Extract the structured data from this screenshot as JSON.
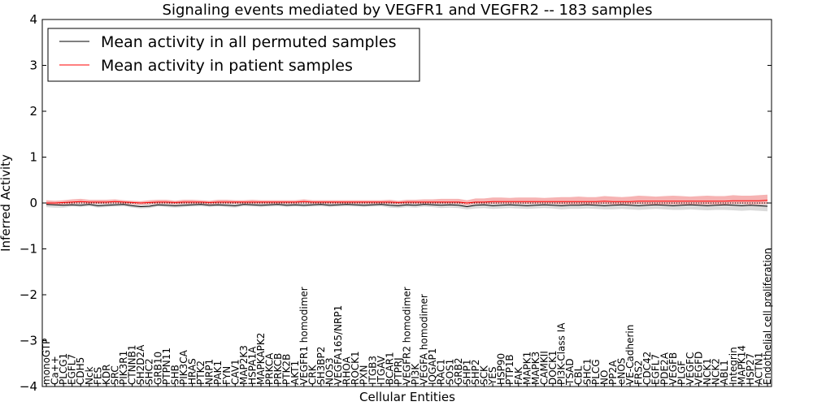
{
  "chart_data": {
    "type": "line",
    "title": "Signaling events mediated by VEGFR1 and VEGFR2 -- 183 samples",
    "xlabel": "Cellular Entities",
    "ylabel": "Inferred Activity",
    "ylim": [
      -4,
      4
    ],
    "yticks": [
      "−4",
      "−3",
      "−2",
      "−1",
      "0",
      "1",
      "2",
      "3",
      "4"
    ],
    "ytick_values": [
      -4,
      -3,
      -2,
      -1,
      0,
      1,
      2,
      3,
      4
    ],
    "legend": {
      "placement": "top-left",
      "entries": [
        {
          "label": "Mean activity in all permuted samples",
          "color": "#000000"
        },
        {
          "label": "Mean activity in patient samples",
          "color": "#ff0000"
        }
      ]
    },
    "categories": [
      "monoGTP",
      "Ca++",
      "PLCG1",
      "EGFL7",
      "CDH5",
      "Nck",
      "FES",
      "KDR",
      "SRC",
      "PIK3R1",
      "CTNNB1",
      "SH2D2A",
      "SHC2",
      "GRB10",
      "PTPN11",
      "SHB",
      "PIK3CA",
      "HRAS",
      "PTK2",
      "NRP1",
      "PAK1",
      "FYN",
      "CAV1",
      "MAP2K3",
      "HSPA1A",
      "MAPKAPK2",
      "PRKCA",
      "PRKCB",
      "PTK2B",
      "AKT1",
      "VEGFR1 homodimer",
      "CRK",
      "SH3BP2",
      "NOS3",
      "VEGFA165/NRP1",
      "RHOA",
      "ROCK1",
      "PXN",
      "ITGB3",
      "ITGAV",
      "BCAR1",
      "PTPRJ",
      "VEGFR2 homodimer",
      "PI3K",
      "VEGFA homodimer",
      "IQGAP1",
      "RAC1",
      "SOS1",
      "GRB2",
      "SHP1",
      "SHP2",
      "SCK",
      "YES",
      "HSP90",
      "PTP1B",
      "FAK",
      "MAPK1",
      "MAPK3",
      "CAMKII",
      "DOCK1",
      "PI3K-Class IA",
      "TSAD",
      "CBL",
      "SHC1",
      "PLCG",
      "NO",
      "PP2A",
      "eNOS",
      "VE-Cadherin",
      "FRS2",
      "CDC42",
      "EGFL7",
      "PDE2A",
      "VEGFB",
      "PLGF",
      "VEGFC",
      "VEGFD",
      "NCK1",
      "NCK2",
      "ABL1",
      "Integrin",
      "MAPK14",
      "HSP27",
      "ACTN1",
      "Endothelial cell proliferation"
    ],
    "series": [
      {
        "name": "Mean activity in all permuted samples",
        "color": "#000000",
        "values": [
          -0.03,
          -0.04,
          -0.05,
          -0.04,
          -0.05,
          -0.03,
          -0.06,
          -0.05,
          -0.04,
          -0.03,
          -0.06,
          -0.08,
          -0.07,
          -0.04,
          -0.05,
          -0.06,
          -0.05,
          -0.04,
          -0.03,
          -0.05,
          -0.04,
          -0.05,
          -0.06,
          -0.03,
          -0.04,
          -0.05,
          -0.04,
          -0.03,
          -0.05,
          -0.04,
          -0.05,
          -0.04,
          -0.03,
          -0.05,
          -0.04,
          -0.03,
          -0.04,
          -0.05,
          -0.04,
          -0.03,
          -0.05,
          -0.06,
          -0.04,
          -0.05,
          -0.03,
          -0.04,
          -0.05,
          -0.04,
          -0.05,
          -0.08,
          -0.05,
          -0.04,
          -0.06,
          -0.05,
          -0.04,
          -0.05,
          -0.06,
          -0.05,
          -0.04,
          -0.05,
          -0.06,
          -0.05,
          -0.05,
          -0.04,
          -0.05,
          -0.06,
          -0.05,
          -0.04,
          -0.05,
          -0.06,
          -0.05,
          -0.04,
          -0.05,
          -0.06,
          -0.05,
          -0.04,
          -0.05,
          -0.06,
          -0.05,
          -0.04,
          -0.05,
          -0.06,
          -0.05,
          -0.06,
          -0.07
        ]
      },
      {
        "name": "Mean activity in patient samples",
        "color": "#ff0000",
        "values": [
          0.0,
          0.0,
          0.01,
          0.02,
          0.03,
          0.02,
          0.02,
          0.02,
          0.03,
          0.02,
          0.01,
          0.0,
          0.01,
          0.02,
          0.02,
          0.01,
          0.02,
          0.02,
          0.02,
          0.01,
          0.02,
          0.02,
          0.02,
          0.02,
          0.02,
          0.02,
          0.02,
          0.02,
          0.02,
          0.02,
          0.03,
          0.02,
          0.02,
          0.02,
          0.02,
          0.02,
          0.02,
          0.02,
          0.02,
          0.02,
          0.02,
          0.01,
          0.02,
          0.02,
          0.02,
          0.02,
          0.02,
          0.02,
          0.02,
          0.0,
          0.02,
          0.02,
          0.03,
          0.03,
          0.03,
          0.03,
          0.03,
          0.03,
          0.03,
          0.03,
          0.03,
          0.03,
          0.03,
          0.03,
          0.03,
          0.04,
          0.03,
          0.03,
          0.03,
          0.04,
          0.04,
          0.04,
          0.04,
          0.04,
          0.04,
          0.04,
          0.04,
          0.04,
          0.04,
          0.04,
          0.05,
          0.05,
          0.05,
          0.05,
          0.06
        ]
      },
      {
        "name": "permuted band",
        "color": "#d3d3d3",
        "lower": [
          -0.09,
          -0.1,
          -0.1,
          -0.08,
          -0.09,
          -0.07,
          -0.1,
          -0.09,
          -0.08,
          -0.07,
          -0.1,
          -0.12,
          -0.11,
          -0.08,
          -0.09,
          -0.1,
          -0.09,
          -0.08,
          -0.07,
          -0.09,
          -0.08,
          -0.09,
          -0.1,
          -0.07,
          -0.08,
          -0.09,
          -0.08,
          -0.07,
          -0.09,
          -0.08,
          -0.09,
          -0.08,
          -0.07,
          -0.09,
          -0.08,
          -0.07,
          -0.08,
          -0.09,
          -0.08,
          -0.07,
          -0.1,
          -0.11,
          -0.09,
          -0.1,
          -0.08,
          -0.09,
          -0.11,
          -0.1,
          -0.11,
          -0.14,
          -0.12,
          -0.11,
          -0.13,
          -0.12,
          -0.11,
          -0.12,
          -0.13,
          -0.12,
          -0.11,
          -0.12,
          -0.14,
          -0.13,
          -0.13,
          -0.12,
          -0.13,
          -0.14,
          -0.14,
          -0.13,
          -0.14,
          -0.15,
          -0.14,
          -0.13,
          -0.14,
          -0.15,
          -0.15,
          -0.14,
          -0.15,
          -0.16,
          -0.15,
          -0.15,
          -0.16,
          -0.17,
          -0.16,
          -0.17,
          -0.18
        ],
        "upper": [
          0.02,
          0.01,
          0.01,
          0.0,
          0.0,
          0.01,
          -0.01,
          0.0,
          0.0,
          0.01,
          -0.01,
          -0.03,
          -0.02,
          0.0,
          -0.01,
          -0.01,
          -0.01,
          0.0,
          0.01,
          -0.01,
          0.0,
          -0.01,
          -0.02,
          0.01,
          0.0,
          -0.01,
          0.0,
          0.01,
          -0.01,
          0.0,
          -0.01,
          0.0,
          0.01,
          -0.01,
          0.0,
          0.01,
          0.0,
          -0.01,
          0.0,
          0.01,
          0.0,
          -0.01,
          0.01,
          0.0,
          0.02,
          0.01,
          0.01,
          0.02,
          0.01,
          -0.02,
          0.02,
          0.03,
          0.01,
          0.02,
          0.03,
          0.02,
          0.01,
          0.02,
          0.03,
          0.02,
          0.02,
          0.03,
          0.03,
          0.04,
          0.03,
          0.02,
          0.04,
          0.05,
          0.04,
          0.03,
          0.04,
          0.05,
          0.04,
          0.03,
          0.05,
          0.06,
          0.05,
          0.04,
          0.05,
          0.05,
          0.04,
          0.05,
          0.06,
          0.05,
          0.04
        ]
      },
      {
        "name": "patient band",
        "color": "#f4a0a0",
        "lower": [
          -0.04,
          -0.04,
          -0.03,
          -0.02,
          -0.01,
          -0.02,
          -0.02,
          -0.02,
          -0.01,
          -0.02,
          -0.03,
          -0.04,
          -0.03,
          -0.02,
          -0.02,
          -0.03,
          -0.02,
          -0.02,
          -0.02,
          -0.03,
          -0.02,
          -0.02,
          -0.02,
          -0.02,
          -0.02,
          -0.02,
          -0.02,
          -0.02,
          -0.02,
          -0.02,
          -0.01,
          -0.02,
          -0.02,
          -0.02,
          -0.02,
          -0.02,
          -0.02,
          -0.02,
          -0.02,
          -0.02,
          -0.02,
          -0.03,
          -0.02,
          -0.02,
          -0.02,
          -0.02,
          -0.02,
          -0.02,
          -0.02,
          -0.05,
          -0.02,
          -0.02,
          -0.02,
          -0.02,
          -0.02,
          -0.02,
          -0.02,
          -0.02,
          -0.02,
          -0.02,
          -0.03,
          -0.03,
          -0.03,
          -0.03,
          -0.03,
          -0.02,
          -0.03,
          -0.03,
          -0.03,
          -0.02,
          -0.03,
          -0.03,
          -0.03,
          -0.03,
          -0.03,
          -0.03,
          -0.03,
          -0.03,
          -0.03,
          -0.03,
          -0.02,
          -0.02,
          -0.03,
          -0.03,
          -0.02
        ],
        "upper": [
          0.06,
          0.05,
          0.06,
          0.08,
          0.09,
          0.07,
          0.07,
          0.07,
          0.08,
          0.06,
          0.05,
          0.04,
          0.06,
          0.07,
          0.07,
          0.05,
          0.07,
          0.07,
          0.06,
          0.05,
          0.07,
          0.07,
          0.06,
          0.06,
          0.07,
          0.06,
          0.06,
          0.06,
          0.06,
          0.06,
          0.08,
          0.06,
          0.06,
          0.06,
          0.06,
          0.06,
          0.06,
          0.06,
          0.06,
          0.06,
          0.07,
          0.05,
          0.07,
          0.07,
          0.08,
          0.08,
          0.09,
          0.09,
          0.09,
          0.06,
          0.1,
          0.1,
          0.12,
          0.12,
          0.11,
          0.12,
          0.12,
          0.12,
          0.11,
          0.12,
          0.13,
          0.13,
          0.14,
          0.13,
          0.13,
          0.15,
          0.14,
          0.13,
          0.14,
          0.16,
          0.15,
          0.14,
          0.15,
          0.16,
          0.15,
          0.14,
          0.15,
          0.16,
          0.15,
          0.15,
          0.17,
          0.16,
          0.16,
          0.17,
          0.18
        ]
      }
    ]
  }
}
